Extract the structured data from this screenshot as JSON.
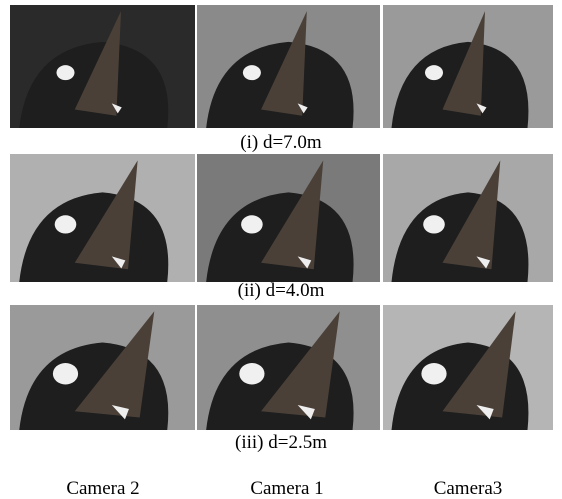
{
  "rows": [
    {
      "caption": "(i) d=7.0m"
    },
    {
      "caption": "(ii) d=4.0m"
    },
    {
      "caption": "(iii) d=2.5m"
    }
  ],
  "columns": [
    "Camera 2",
    "Camera 1",
    "Camera3"
  ]
}
